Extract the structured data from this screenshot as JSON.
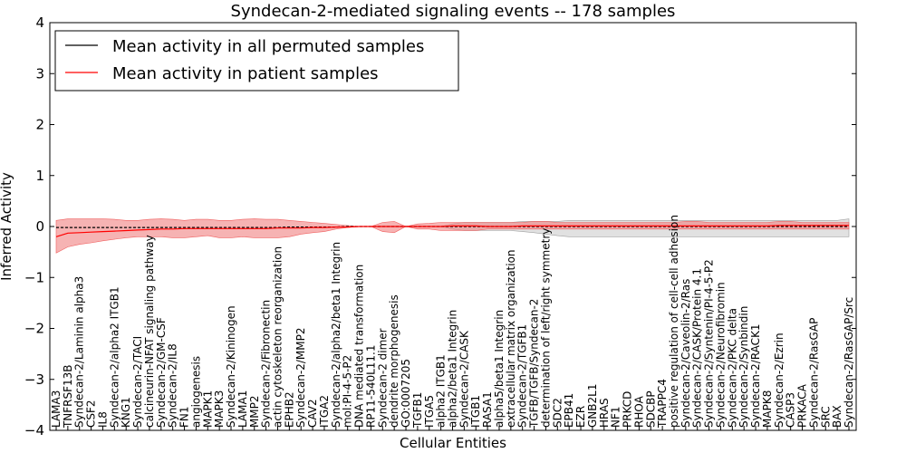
{
  "chart_data": {
    "type": "line",
    "title": "Syndecan-2-mediated signaling events -- 178 samples",
    "xlabel": "Cellular Entities",
    "ylabel": "Inferred Activity",
    "ylim": [
      -4,
      4
    ],
    "yticks": [
      -4,
      -3,
      -2,
      -1,
      0,
      1,
      2,
      3,
      4
    ],
    "legend_position": "top-left",
    "colors": {
      "permuted": "#000000",
      "patient": "#ff0000",
      "patient_band": "#f08080",
      "permuted_band": "#c8c8c8"
    },
    "categories": [
      "LAMA3",
      "TNFRSF13B",
      "Syndecan-2/Laminin alpha3",
      "CSF2",
      "IL8",
      "Syndecan-2/alpha2 ITGB1",
      "KNG1",
      "Syndecan-2/TACI",
      "calcineurin-NFAT signaling pathway",
      "Syndecan-2/GM-CSF",
      "Syndecan-2/IL8",
      "FN1",
      "angiogenesis",
      "MAPK1",
      "MAPK3",
      "Syndecan-2/Kininogen",
      "LAMA1",
      "MMP2",
      "Syndecan-2/Fibronectin",
      "actin cytoskeleton reorganization",
      "EPHB2",
      "Syndecan-2/MMP2",
      "CAV2",
      "ITGA2",
      "Syndecan-2/alpha2/beta1 Integrin",
      "mol:PI-4-5-P2",
      "DNA mediated transformation",
      "RP11-540L11.1",
      "Syndecan-2 dimer",
      "dendrite morphogenesis",
      "GO:0007205",
      "TGFB1",
      "ITGA5",
      "alpha2 ITGB1",
      "alpha2/beta1 Integrin",
      "Syndecan-2/CASK",
      "ITGB1",
      "RASA1",
      "alpha5/beta1 Integrin",
      "extracellular matrix organization",
      "Syndecan-2/TGFB1",
      "TGFB/TGFB/Syndecan-2",
      "determination of left/right symmetry",
      "SDC2",
      "EPB41",
      "EZR",
      "GNB2L1",
      "HRAS",
      "NF1",
      "PRKCD",
      "RHOA",
      "SDCBP",
      "TRAPPC4",
      "positive regulation of cell-cell adhesion",
      "Syndecan-2/Caveolin-2/Ras",
      "Syndecan-2/CASK/Protein 4.1",
      "Syndecan-2/Syntenin/PI-4-5-P2",
      "Syndecan-2/Neurofibromin",
      "Syndecan-2/PKC delta",
      "Syndecan-2/Synbindin",
      "Syndecan-2/RACK1",
      "MAPK8",
      "Syndecan-2/Ezrin",
      "CASP3",
      "PRKACA",
      "Syndecan-2/RasGAP",
      "SRC",
      "BAX",
      "Syndecan-2/RasGAP/Src"
    ],
    "series": [
      {
        "name": "Mean activity in all permuted samples",
        "values": [
          -0.02,
          -0.02,
          -0.02,
          -0.02,
          -0.02,
          -0.02,
          -0.02,
          -0.02,
          -0.02,
          -0.02,
          -0.02,
          -0.02,
          -0.02,
          -0.02,
          -0.02,
          -0.02,
          -0.02,
          -0.02,
          -0.02,
          -0.02,
          -0.01,
          -0.01,
          -0.01,
          -0.01,
          -0.01,
          0,
          0,
          0,
          0,
          0,
          0,
          0,
          0,
          0,
          0,
          0,
          0,
          0,
          0,
          0,
          0,
          0,
          0,
          0,
          0,
          0,
          0,
          0,
          0,
          0,
          0,
          0,
          0,
          0,
          0,
          0,
          0,
          0,
          0,
          0,
          0,
          0,
          0,
          0,
          0,
          0,
          0,
          0,
          0
        ],
        "lower": [
          -0.02,
          -0.02,
          -0.02,
          -0.02,
          -0.02,
          -0.02,
          -0.02,
          -0.02,
          -0.02,
          -0.02,
          -0.02,
          -0.02,
          -0.02,
          -0.02,
          -0.02,
          -0.02,
          -0.02,
          -0.02,
          -0.02,
          -0.02,
          -0.01,
          -0.01,
          -0.01,
          -0.01,
          -0.01,
          0,
          0,
          0,
          0,
          0,
          0,
          0,
          0,
          0,
          -0.05,
          -0.08,
          -0.08,
          -0.08,
          -0.08,
          -0.08,
          -0.1,
          -0.12,
          -0.15,
          -0.18,
          -0.2,
          -0.2,
          -0.2,
          -0.2,
          -0.2,
          -0.2,
          -0.2,
          -0.2,
          -0.2,
          -0.2,
          -0.2,
          -0.2,
          -0.2,
          -0.2,
          -0.2,
          -0.2,
          -0.2,
          -0.2,
          -0.2,
          -0.2,
          -0.2,
          -0.2,
          -0.2,
          -0.2,
          -0.2
        ],
        "upper": [
          -0.02,
          -0.02,
          -0.02,
          -0.02,
          -0.02,
          -0.02,
          -0.02,
          -0.02,
          -0.02,
          -0.02,
          -0.02,
          -0.02,
          -0.02,
          -0.02,
          -0.02,
          -0.02,
          -0.02,
          -0.02,
          -0.02,
          -0.02,
          -0.01,
          -0.01,
          -0.01,
          -0.01,
          -0.01,
          0,
          0,
          0,
          0,
          0,
          0,
          0,
          0,
          0,
          0.05,
          0.08,
          0.08,
          0.08,
          0.08,
          0.08,
          0.1,
          0.1,
          0.1,
          0.1,
          0.12,
          0.12,
          0.12,
          0.12,
          0.12,
          0.12,
          0.12,
          0.12,
          0.12,
          0.12,
          0.12,
          0.12,
          0.12,
          0.12,
          0.12,
          0.12,
          0.12,
          0.12,
          0.12,
          0.12,
          0.12,
          0.12,
          0.12,
          0.12,
          0.15
        ]
      },
      {
        "name": "Mean activity in patient samples",
        "values": [
          -0.2,
          -0.13,
          -0.12,
          -0.11,
          -0.1,
          -0.09,
          -0.08,
          -0.07,
          -0.06,
          -0.05,
          -0.05,
          -0.04,
          -0.04,
          -0.04,
          -0.04,
          -0.04,
          -0.04,
          -0.04,
          -0.04,
          -0.03,
          -0.03,
          -0.03,
          -0.02,
          -0.02,
          -0.01,
          -0.01,
          0,
          0,
          0,
          0,
          0,
          0,
          0,
          0,
          0.01,
          0.01,
          0.01,
          0,
          0,
          0,
          0.01,
          0.01,
          0.01,
          0.01,
          0.01,
          0.01,
          0.01,
          0.01,
          0.01,
          0.01,
          0.01,
          0.01,
          0.01,
          0.01,
          0.01,
          0.01,
          0.01,
          0.01,
          0.01,
          0.01,
          0.01,
          0.01,
          0.02,
          0.02,
          0.02,
          0.02,
          0.02,
          0.02,
          0.02
        ],
        "lower": [
          -0.52,
          -0.4,
          -0.35,
          -0.32,
          -0.28,
          -0.25,
          -0.22,
          -0.2,
          -0.2,
          -0.2,
          -0.22,
          -0.22,
          -0.2,
          -0.18,
          -0.22,
          -0.22,
          -0.2,
          -0.22,
          -0.22,
          -0.22,
          -0.2,
          -0.15,
          -0.12,
          -0.1,
          -0.05,
          -0.02,
          0,
          0,
          -0.1,
          -0.12,
          0,
          -0.05,
          -0.05,
          -0.08,
          -0.08,
          -0.08,
          -0.08,
          -0.05,
          -0.05,
          -0.05,
          -0.05,
          -0.05,
          -0.05,
          -0.05,
          -0.05,
          -0.05,
          -0.05,
          -0.05,
          -0.05,
          -0.05,
          -0.05,
          -0.05,
          -0.05,
          -0.05,
          -0.05,
          -0.05,
          -0.05,
          -0.05,
          -0.05,
          -0.05,
          -0.05,
          -0.05,
          -0.05,
          -0.05,
          -0.05,
          -0.05,
          -0.05,
          -0.05,
          -0.05
        ],
        "upper": [
          0.12,
          0.15,
          0.15,
          0.15,
          0.15,
          0.14,
          0.12,
          0.12,
          0.14,
          0.15,
          0.14,
          0.12,
          0.14,
          0.14,
          0.12,
          0.12,
          0.14,
          0.15,
          0.14,
          0.14,
          0.12,
          0.1,
          0.08,
          0.06,
          0.04,
          0.02,
          0,
          0,
          0.08,
          0.1,
          0,
          0.05,
          0.06,
          0.08,
          0.08,
          0.08,
          0.08,
          0.08,
          0.08,
          0.08,
          0.08,
          0.1,
          0.1,
          0.08,
          0.08,
          0.08,
          0.08,
          0.08,
          0.08,
          0.08,
          0.08,
          0.08,
          0.08,
          0.08,
          0.1,
          0.1,
          0.08,
          0.08,
          0.08,
          0.08,
          0.08,
          0.08,
          0.1,
          0.1,
          0.08,
          0.08,
          0.08,
          0.08,
          0.08
        ]
      }
    ]
  }
}
